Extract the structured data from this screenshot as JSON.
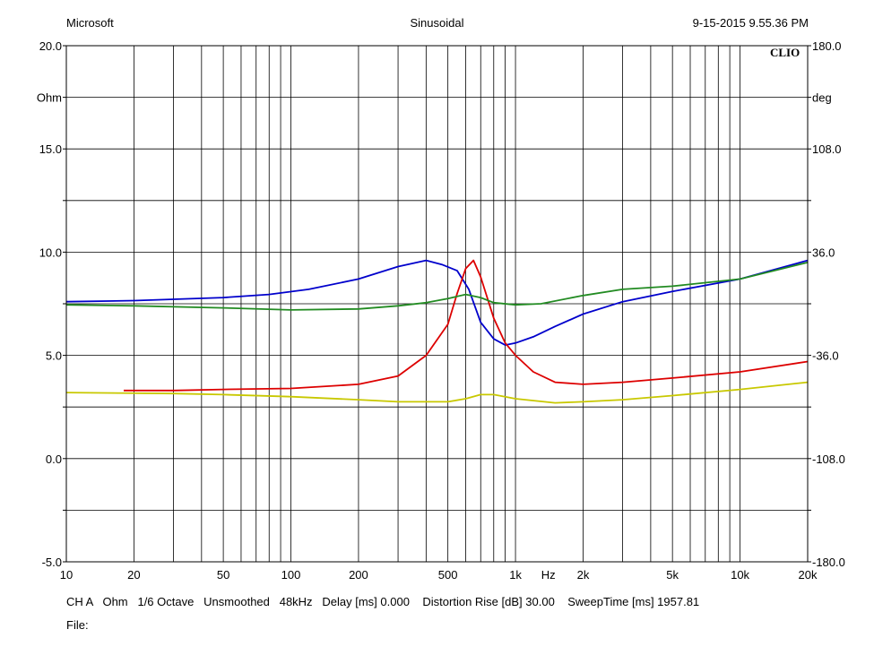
{
  "header": {
    "left": "Microsoft",
    "center": "Sinusoidal",
    "right": "9-15-2015 9.55.36 PM"
  },
  "logo": "CLIO",
  "footer": {
    "params": "CH A   Ohm   1/6 Octave   Unsmoothed   48kHz   Delay [ms] 0.000    Distortion Rise [dB] 30.00    SweepTime [ms] 1957.81",
    "file": "File:"
  },
  "chart_data": {
    "type": "line",
    "x_scale": "log",
    "xlim": [
      10,
      20000
    ],
    "ylim_left": [
      -5,
      20
    ],
    "ylim_right": [
      -180,
      180
    ],
    "grid": true,
    "x_ticks": [
      {
        "v": 10,
        "label": "10"
      },
      {
        "v": 20,
        "label": "20"
      },
      {
        "v": 50,
        "label": "50"
      },
      {
        "v": 100,
        "label": "100"
      },
      {
        "v": 200,
        "label": "200"
      },
      {
        "v": 500,
        "label": "500"
      },
      {
        "v": 1000,
        "label": "1k"
      },
      {
        "v": 2000,
        "label": "2k"
      },
      {
        "v": 5000,
        "label": "5k"
      },
      {
        "v": 10000,
        "label": "10k"
      },
      {
        "v": 20000,
        "label": "20k"
      }
    ],
    "x_unit_label": "Hz",
    "x_unit_at": 1400,
    "y_left_ticks": [
      {
        "v": 20,
        "label": "20.0"
      },
      {
        "v": 17.5,
        "label": "Ohm"
      },
      {
        "v": 15,
        "label": "15.0"
      },
      {
        "v": 10,
        "label": "10.0"
      },
      {
        "v": 5,
        "label": "5.0"
      },
      {
        "v": 0,
        "label": "0.0"
      },
      {
        "v": -5,
        "label": "-5.0"
      }
    ],
    "y_right_ticks": [
      {
        "v": 180,
        "label": "180.0"
      },
      {
        "v": 144,
        "label": "deg"
      },
      {
        "v": 108,
        "label": "108.0"
      },
      {
        "v": 36,
        "label": "36.0"
      },
      {
        "v": -36,
        "label": "-36.0"
      },
      {
        "v": -108,
        "label": "-108.0"
      },
      {
        "v": -180,
        "label": "-180.0"
      }
    ],
    "series": [
      {
        "color": "#0000cc",
        "axis": "left",
        "x": [
          10,
          20,
          50,
          80,
          120,
          200,
          300,
          400,
          470,
          550,
          620,
          700,
          800,
          900,
          1000,
          1200,
          1500,
          2000,
          3000,
          5000,
          10000,
          20000
        ],
        "y": [
          7.6,
          7.65,
          7.8,
          7.95,
          8.2,
          8.7,
          9.3,
          9.6,
          9.4,
          9.1,
          8.2,
          6.6,
          5.8,
          5.5,
          5.6,
          5.9,
          6.4,
          7.0,
          7.6,
          8.1,
          8.7,
          9.6
        ]
      },
      {
        "color": "#dd0000",
        "axis": "left",
        "x": [
          18,
          30,
          50,
          100,
          200,
          300,
          400,
          500,
          550,
          600,
          650,
          700,
          800,
          900,
          1000,
          1200,
          1500,
          2000,
          3000,
          5000,
          10000,
          20000
        ],
        "y": [
          3.3,
          3.3,
          3.35,
          3.4,
          3.6,
          4.0,
          5.0,
          6.5,
          8.0,
          9.2,
          9.6,
          8.8,
          6.8,
          5.6,
          5.0,
          4.2,
          3.7,
          3.6,
          3.7,
          3.9,
          4.2,
          4.7
        ]
      },
      {
        "color": "#228b22",
        "axis": "left",
        "x": [
          10,
          20,
          50,
          100,
          200,
          300,
          400,
          500,
          600,
          700,
          800,
          1000,
          1300,
          2000,
          3000,
          5000,
          10000,
          20000
        ],
        "y": [
          7.45,
          7.4,
          7.3,
          7.2,
          7.25,
          7.4,
          7.55,
          7.75,
          7.95,
          7.8,
          7.55,
          7.45,
          7.5,
          7.9,
          8.2,
          8.35,
          8.7,
          9.5
        ]
      },
      {
        "color": "#c8c800",
        "axis": "left",
        "x": [
          10,
          30,
          50,
          100,
          200,
          300,
          400,
          500,
          600,
          700,
          800,
          1000,
          1500,
          2000,
          3000,
          5000,
          10000,
          20000
        ],
        "y": [
          3.2,
          3.15,
          3.1,
          3.0,
          2.85,
          2.75,
          2.75,
          2.75,
          2.9,
          3.1,
          3.1,
          2.9,
          2.7,
          2.75,
          2.85,
          3.05,
          3.35,
          3.7
        ]
      }
    ]
  }
}
